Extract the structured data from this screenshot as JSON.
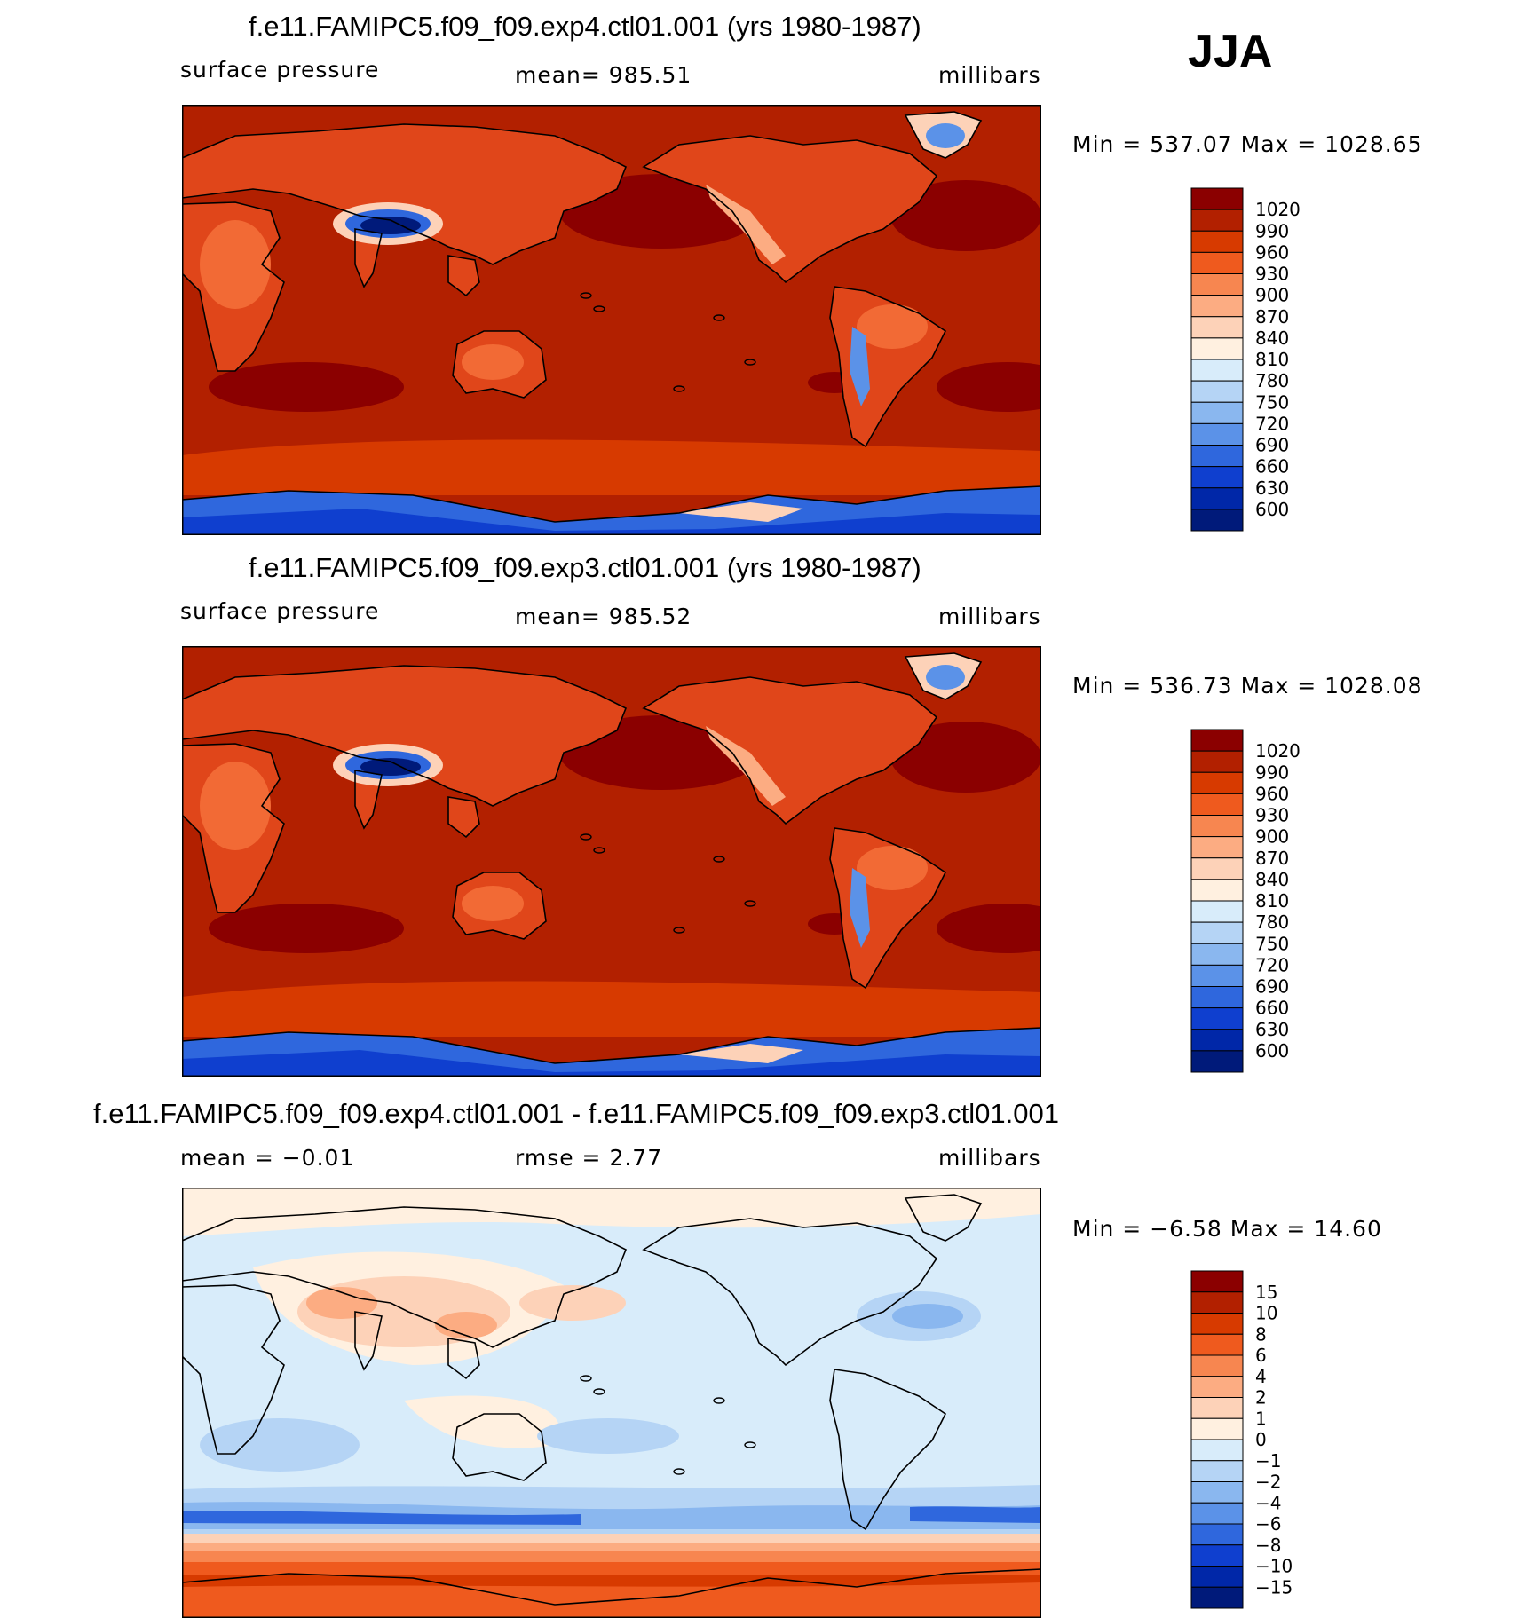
{
  "season": "JJA",
  "panels": [
    {
      "title": "f.e11.FAMIPC5.f09_f09.exp4.ctl01.001 (yrs 1980-1987)",
      "left": "surface pressure",
      "center": "mean= 985.51",
      "right": "millibars",
      "minmax": "Min = 537.07 Max = 1028.65",
      "map_style": "abs",
      "colorbar": {
        "colors": [
          "#8b0000",
          "#b22000",
          "#d73a00",
          "#ef5a1e",
          "#f78650",
          "#fcac82",
          "#fdd2b8",
          "#fff0e0",
          "#d8ecfa",
          "#b5d4f5",
          "#8ab7ef",
          "#5b92e8",
          "#2f67dd",
          "#0f3fcf",
          "#0027a8",
          "#001a7a"
        ],
        "labels": [
          "1020",
          "990",
          "960",
          "930",
          "900",
          "870",
          "840",
          "810",
          "780",
          "750",
          "720",
          "690",
          "660",
          "630",
          "600"
        ]
      }
    },
    {
      "title": "f.e11.FAMIPC5.f09_f09.exp3.ctl01.001 (yrs 1980-1987)",
      "left": "surface pressure",
      "center": "mean= 985.52",
      "right": "millibars",
      "minmax": "Min = 536.73 Max = 1028.08",
      "map_style": "abs",
      "colorbar": {
        "colors": [
          "#8b0000",
          "#b22000",
          "#d73a00",
          "#ef5a1e",
          "#f78650",
          "#fcac82",
          "#fdd2b8",
          "#fff0e0",
          "#d8ecfa",
          "#b5d4f5",
          "#8ab7ef",
          "#5b92e8",
          "#2f67dd",
          "#0f3fcf",
          "#0027a8",
          "#001a7a"
        ],
        "labels": [
          "1020",
          "990",
          "960",
          "930",
          "900",
          "870",
          "840",
          "810",
          "780",
          "750",
          "720",
          "690",
          "660",
          "630",
          "600"
        ]
      }
    },
    {
      "title": "f.e11.FAMIPC5.f09_f09.exp4.ctl01.001 - f.e11.FAMIPC5.f09_f09.exp3.ctl01.001",
      "left": "mean = −0.01",
      "center": "rmse = 2.77",
      "right": "millibars",
      "minmax": "Min = −6.58 Max = 14.60",
      "map_style": "diff",
      "colorbar": {
        "colors": [
          "#8b0000",
          "#b22000",
          "#d73a00",
          "#ef5a1e",
          "#f78650",
          "#fcac82",
          "#fdd2b8",
          "#fff0e0",
          "#d8ecfa",
          "#b5d4f5",
          "#8ab7ef",
          "#5b92e8",
          "#2f67dd",
          "#0f3fcf",
          "#0027a8",
          "#001a7a"
        ],
        "labels": [
          "15",
          "10",
          "8",
          "6",
          "4",
          "2",
          "1",
          "0",
          "−1",
          "−2",
          "−4",
          "−6",
          "−8",
          "−10",
          "−15"
        ]
      }
    }
  ]
}
